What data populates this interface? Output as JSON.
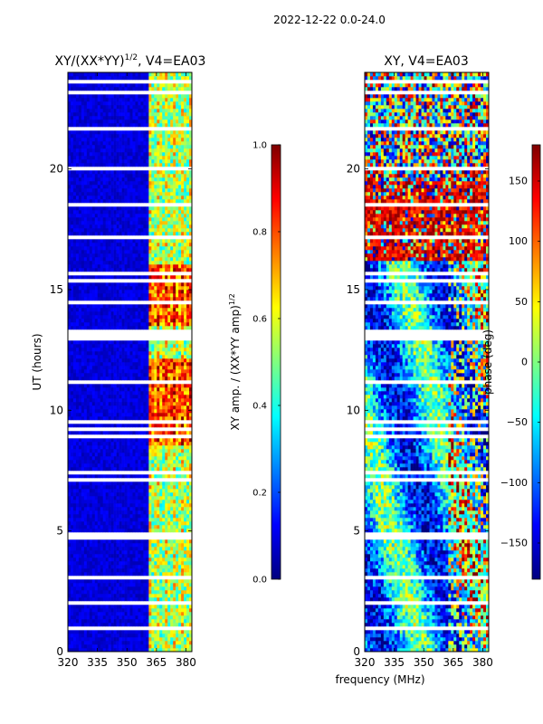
{
  "figure": {
    "suptitle": "2022-12-22 0.0-24.0",
    "xlabel": "frequency (MHz)"
  },
  "colors": {
    "jet": [
      "#00007f",
      "#0000ff",
      "#007fff",
      "#00ffff",
      "#7fff7f",
      "#ffff00",
      "#ff7f00",
      "#ff0000",
      "#7f0000"
    ],
    "flagged": "#ffffff"
  },
  "chart_data": [
    {
      "type": "heatmap",
      "title": "XY/(XX*YY)",
      "title_sup": "1/2",
      "title_suffix": ", V4=EA03",
      "xlabel": "",
      "ylabel": "UT (hours)",
      "xlim": [
        320,
        383
      ],
      "ylim": [
        0,
        24
      ],
      "xticks": [
        320,
        335,
        350,
        365,
        380
      ],
      "yticks": [
        0,
        5,
        10,
        15,
        20
      ],
      "band_mhz": [
        361,
        383
      ],
      "colorbar": {
        "label": "XY amp. / (XX*YY amp)",
        "label_sup": "1/2",
        "range": [
          0.0,
          1.0
        ],
        "ticks": [
          "0.0",
          "0.2",
          "0.4",
          "0.6",
          "0.8",
          "1.0"
        ]
      }
    },
    {
      "type": "heatmap",
      "title": "XY, V4=EA03",
      "xlabel": "",
      "ylabel": "",
      "xlim": [
        320,
        383
      ],
      "ylim": [
        0,
        24
      ],
      "xticks": [
        320,
        335,
        350,
        365,
        380
      ],
      "yticks": [
        0,
        5,
        10,
        15,
        20
      ],
      "noisy_hours": [
        16.2,
        24
      ],
      "colorbar": {
        "label": "phase (deg)",
        "range": [
          -180,
          180
        ],
        "ticks": [
          "−150",
          "−100",
          "−50",
          "0",
          "50",
          "100",
          "150"
        ]
      }
    }
  ]
}
